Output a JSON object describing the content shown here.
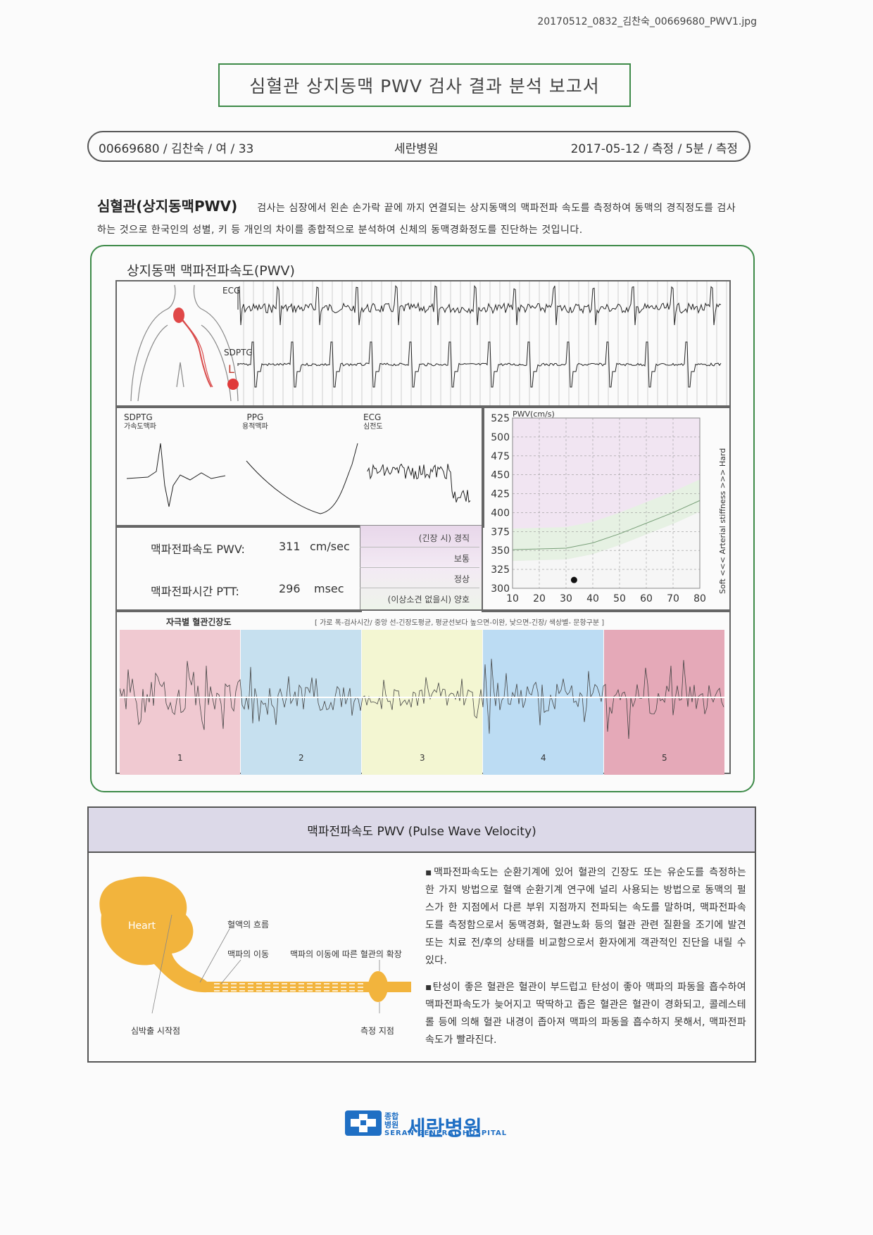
{
  "file_name": "20170512_0832_김찬숙_00669680_PWV1.jpg",
  "report_title": "심혈관 상지동맥 PWV 검사 결과 분석 보고서",
  "patient_bar": {
    "id_info": "00669680 / 김찬숙 / 여 / 33",
    "hospital": "세란병원",
    "date_info": "2017-05-12 / 측정 / 5분 / 측정"
  },
  "intro": {
    "heading": "심혈관(상지동맥PWV)",
    "text": "검사는 심장에서 왼손 손가락 끝에 까지 연결되는 상지동맥의 맥파전파 속도를 측정하여 동맥의 경직정도를 검사하는 것으로 한국인의 성별, 키 등 개인의 차이를 종합적으로 분석하여 신체의 동맥경화정도를 진단하는 것입니다."
  },
  "panel_title": "상지동맥 맥파전파속도(PWV)",
  "waveform_labels": {
    "ecg": "ECG",
    "sdptg": "SDPTG",
    "side": "L"
  },
  "small_waves": {
    "sdptg": {
      "title": "SDPTG",
      "sub": "가속도맥파"
    },
    "ppg": {
      "title": "PPG",
      "sub": "용적맥파"
    },
    "ecg": {
      "title": "ECG",
      "sub": "심전도"
    }
  },
  "measurements": {
    "pwv_label": "맥파전파속도 PWV:",
    "pwv_value": "311",
    "pwv_unit": "cm/sec",
    "ptt_label": "맥파전파시간 PTT:",
    "ptt_value": "296",
    "ptt_unit": "msec"
  },
  "status_levels": [
    "(긴장 시) 경직",
    "보통",
    "정상",
    "(이상소견 없을시) 양호"
  ],
  "chart_data": {
    "type": "scatter",
    "title": "",
    "ylabel": "PWV(cm/s)",
    "xlabel": "",
    "x_ticks": [
      10,
      20,
      30,
      40,
      50,
      60,
      70,
      80
    ],
    "y_ticks": [
      300,
      325,
      350,
      375,
      400,
      425,
      450,
      475,
      500,
      525
    ],
    "xlim": [
      10,
      80
    ],
    "ylim": [
      300,
      525
    ],
    "right_label": "Soft  <<<  Arterial stiffness  >>>  Hard",
    "points": [
      {
        "x": 33,
        "y": 311
      }
    ],
    "reference_curve": {
      "x": [
        10,
        30,
        40,
        50,
        60,
        70,
        80
      ],
      "y": [
        351,
        353,
        360,
        372,
        386,
        400,
        416
      ]
    },
    "grid": true,
    "legend": "none"
  },
  "tension": {
    "title": "자극별 혈관긴장도",
    "legend": "[ 가로 폭-검사시간/ 중앙 선-긴장도평균, 평균선보다 높으면-이완, 낮으면-긴장/ 색상별- 문항구분 ]",
    "bands": [
      {
        "label": "1",
        "color": "#f0c9d1"
      },
      {
        "label": "2",
        "color": "#c6e0ef"
      },
      {
        "label": "3",
        "color": "#f3f6d2"
      },
      {
        "label": "4",
        "color": "#bcdcf3"
      },
      {
        "label": "5",
        "color": "#e5a9b8"
      }
    ]
  },
  "info": {
    "header": "맥파전파속도  PWV (Pulse Wave Velocity)",
    "para1": "▪맥파전파속도는 순환기계에 있어 혈관의 긴장도 또는 유순도를 측정하는 한 가지 방법으로 혈액 순환기계 연구에 널리 사용되는 방법으로 동맥의 펄스가 한 지점에서 다른 부위 지점까지 전파되는 속도를 말하며, 맥파전파속도를 측정함으로서 동맥경화, 혈관노화 등의 혈관 관련 질환을 조기에 발견 또는 치료 전/후의 상태를 비교함으로서 환자에게 객관적인 진단을 내릴 수 있다.",
    "para2": "▪탄성이 좋은 혈관은 혈관이 부드럽고 탄성이 좋아 맥파의 파동을 흡수하여 맥파전파속도가 늦어지고 딱딱하고 좁은 혈관은 혈관이 경화되고, 콜레스테롤 등에 의해 혈관 내경이 좁아져 맥파의 파동을 흡수하지 못해서, 맥파전파속도가 빨라진다.",
    "diagram": {
      "heart": "Heart",
      "blood_flow": "혈액의 흐름",
      "pulse_move": "맥파의 이동",
      "expansion": "맥파의 이동에 따른 혈관의 확장",
      "start": "심박출 시작점",
      "measure": "측정 지점"
    }
  },
  "logo": {
    "small": "종합\n병원",
    "name": "세란병원",
    "english": "SERAN GENERAL HOSPITAL",
    "color": "#1f6fc4"
  }
}
